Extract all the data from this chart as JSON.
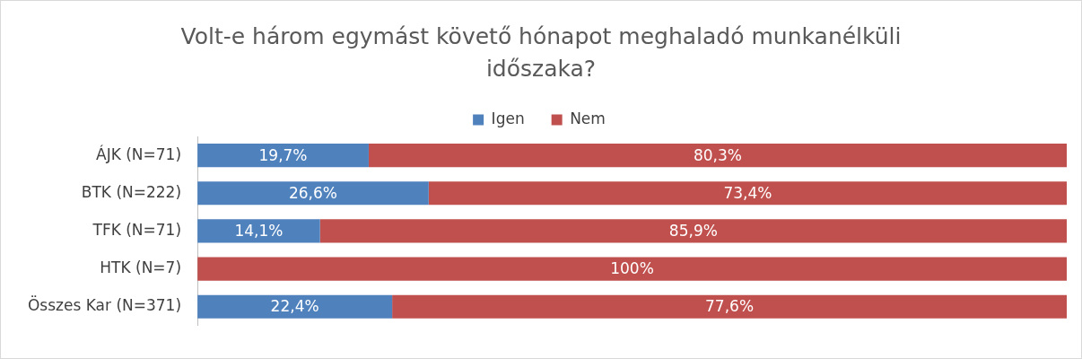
{
  "chart_data": {
    "type": "bar",
    "orientation": "horizontal",
    "stacked": true,
    "title": "Volt-e három egymást követő hónapot meghaladó munkanélküli időszaka?",
    "categories": [
      "ÁJK (N=71)",
      "BTK (N=222)",
      "TFK (N=71)",
      "HTK (N=7)",
      "Összes Kar (N=371)"
    ],
    "xlim": [
      0,
      100
    ],
    "tick_labels": "y",
    "grid": false,
    "legend": "top",
    "series": [
      {
        "name": "Igen",
        "color": "#4f81bd",
        "values": [
          19.7,
          26.6,
          14.1,
          0,
          22.4
        ],
        "value_labels": [
          "19,7%",
          "26,6%",
          "14,1%",
          null,
          "22,4%"
        ]
      },
      {
        "name": "Nem",
        "color": "#c0504d",
        "values": [
          80.3,
          73.4,
          85.9,
          100,
          77.6
        ],
        "value_labels": [
          "80,3%",
          "73,4%",
          "85,9%",
          "100%",
          "77,6%"
        ]
      }
    ]
  }
}
